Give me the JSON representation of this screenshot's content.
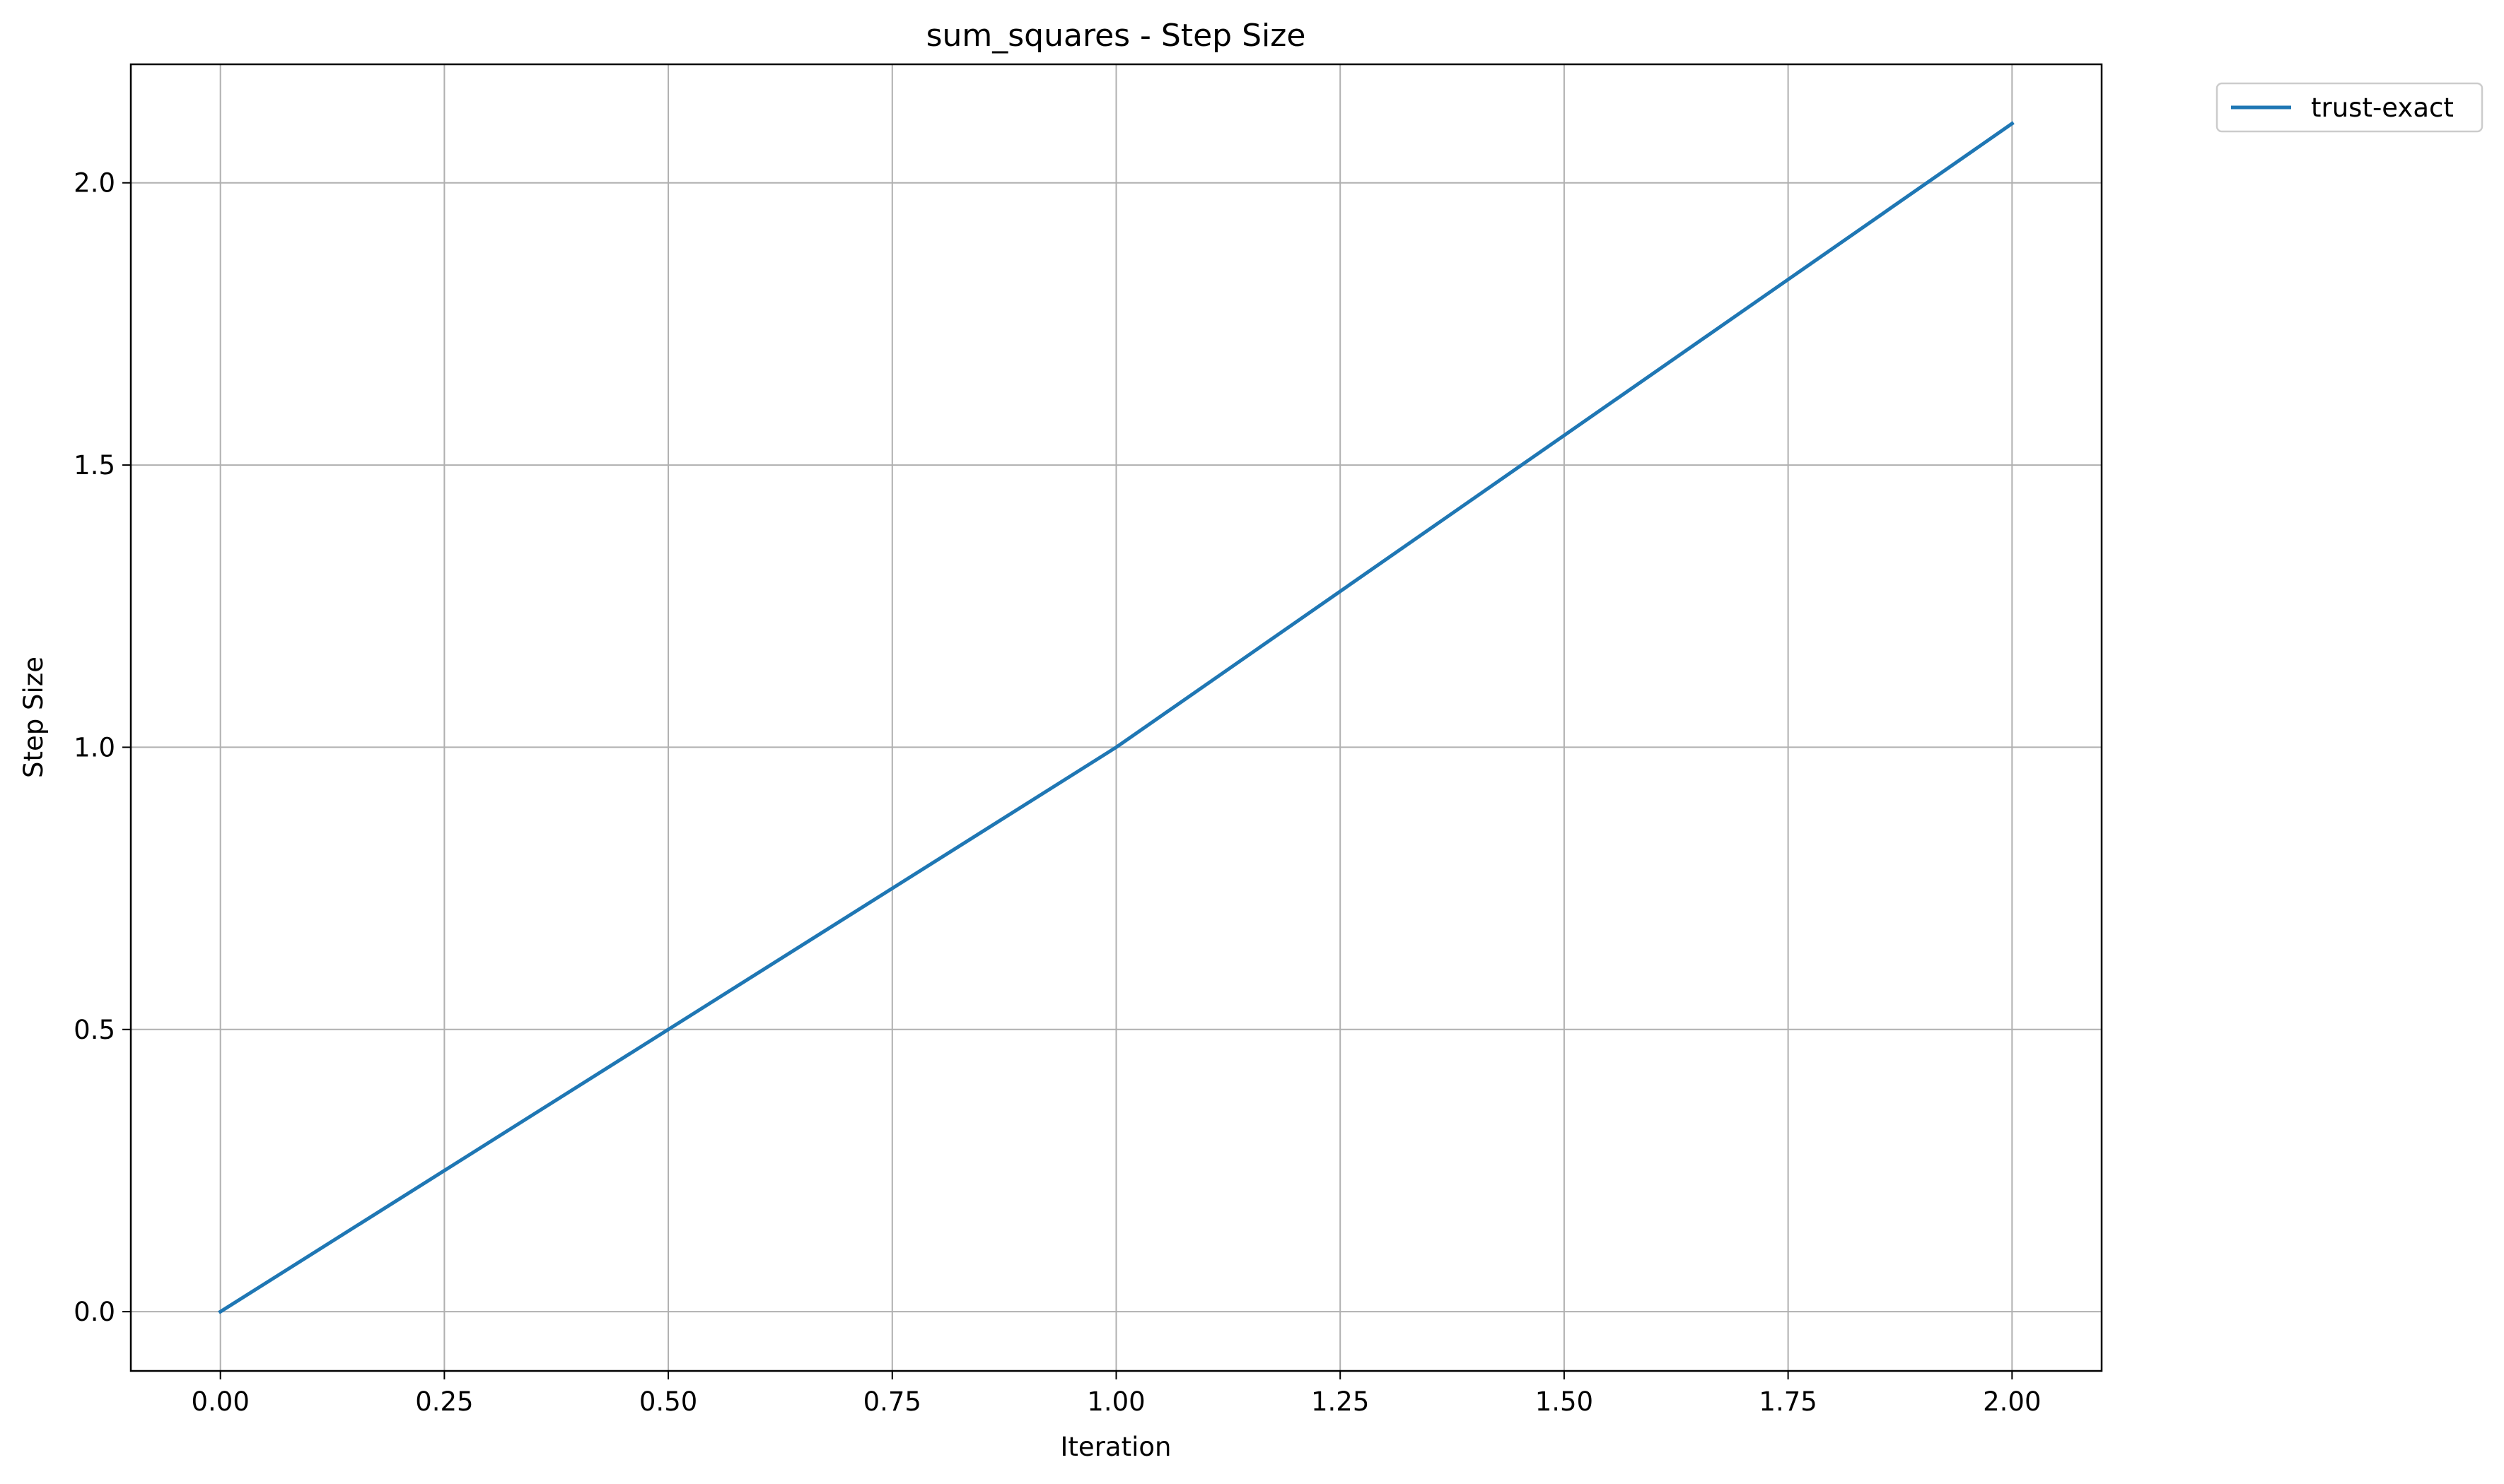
{
  "chart_data": {
    "type": "line",
    "title": "sum_squares - Step Size",
    "xlabel": "Iteration",
    "ylabel": "Step Size",
    "xlim": [
      -0.1,
      2.1
    ],
    "ylim": [
      -0.105,
      2.21
    ],
    "x_ticks": [
      0.0,
      0.25,
      0.5,
      0.75,
      1.0,
      1.25,
      1.5,
      1.75,
      2.0
    ],
    "x_tick_labels": [
      "0.00",
      "0.25",
      "0.50",
      "0.75",
      "1.00",
      "1.25",
      "1.50",
      "1.75",
      "2.00"
    ],
    "y_ticks": [
      0.0,
      0.5,
      1.0,
      1.5,
      2.0
    ],
    "y_tick_labels": [
      "0.0",
      "0.5",
      "1.0",
      "1.5",
      "2.0"
    ],
    "grid": true,
    "legend_position": "outside-top-right",
    "series": [
      {
        "name": "trust-exact",
        "color": "#1f77b4",
        "x": [
          0,
          1,
          2
        ],
        "y": [
          0.0,
          1.0,
          2.105
        ]
      }
    ]
  }
}
